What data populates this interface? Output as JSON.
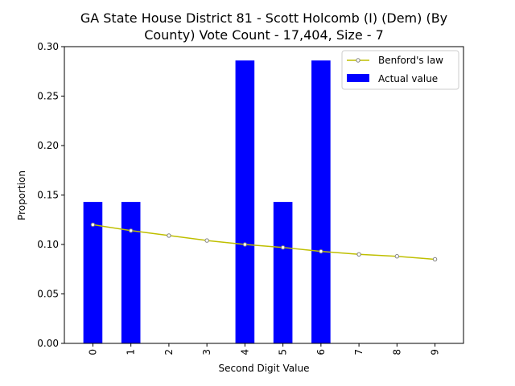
{
  "chart_data": {
    "type": "bar",
    "title": [
      "GA State House District 81 - Scott Holcomb (I) (Dem) (By",
      "County) Vote Count - 17,404, Size - 7"
    ],
    "xlabel": "Second Digit Value",
    "ylabel": "Proportion",
    "categories": [
      "0",
      "1",
      "2",
      "3",
      "4",
      "5",
      "6",
      "7",
      "8",
      "9"
    ],
    "ylim": [
      0,
      0.3
    ],
    "yticks": [
      0.0,
      0.05,
      0.1,
      0.15,
      0.2,
      0.25,
      0.3
    ],
    "ytick_labels": [
      "0.00",
      "0.05",
      "0.10",
      "0.15",
      "0.20",
      "0.25",
      "0.30"
    ],
    "legend_position": "top-right",
    "series": [
      {
        "name": "Actual value",
        "kind": "bar",
        "color": "#0000ff",
        "values": [
          0.143,
          0.143,
          0.0,
          0.0,
          0.286,
          0.143,
          0.286,
          0.0,
          0.0,
          0.0
        ]
      },
      {
        "name": "Benford's law",
        "kind": "line",
        "color": "#bfbf00",
        "marker_color": "#808080",
        "values": [
          0.12,
          0.114,
          0.109,
          0.104,
          0.1,
          0.097,
          0.093,
          0.09,
          0.088,
          0.085
        ]
      }
    ]
  }
}
